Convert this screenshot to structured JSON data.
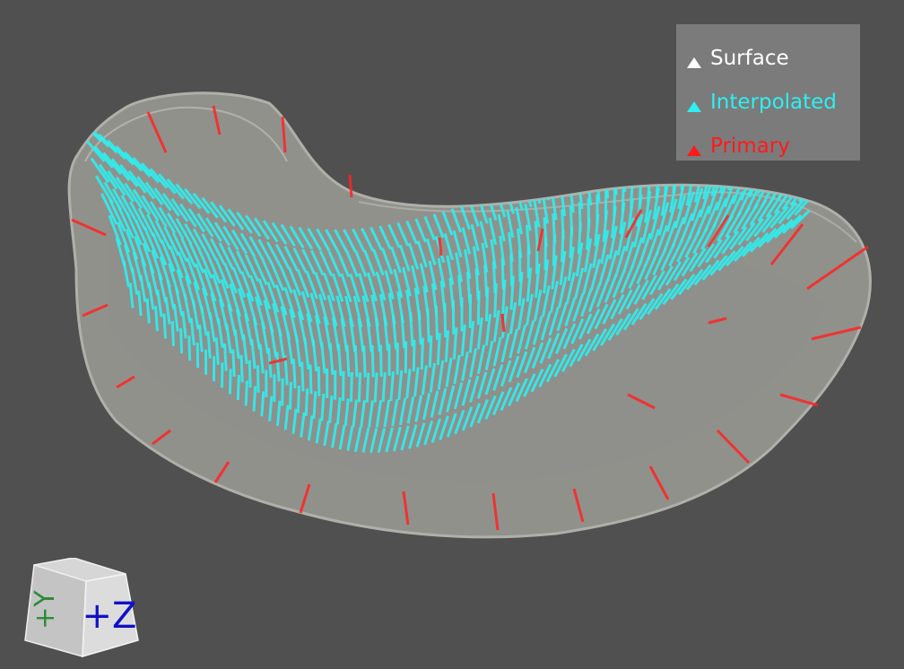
{
  "legend": {
    "items": [
      {
        "label": "Surface",
        "color": "#ffffff"
      },
      {
        "label": "Interpolated",
        "color": "#2ef0f0"
      },
      {
        "label": "Primary",
        "color": "#ff1a1a"
      }
    ]
  },
  "orientation_cube": {
    "front_label": "+Z",
    "side_label": "+Y",
    "front_color": "#1010c8",
    "side_color": "#2e8b3a"
  },
  "colors": {
    "background": "#505050",
    "surface": "#b8b8b0",
    "interpolated": "#2ef0f0",
    "primary": "#ff2222"
  }
}
